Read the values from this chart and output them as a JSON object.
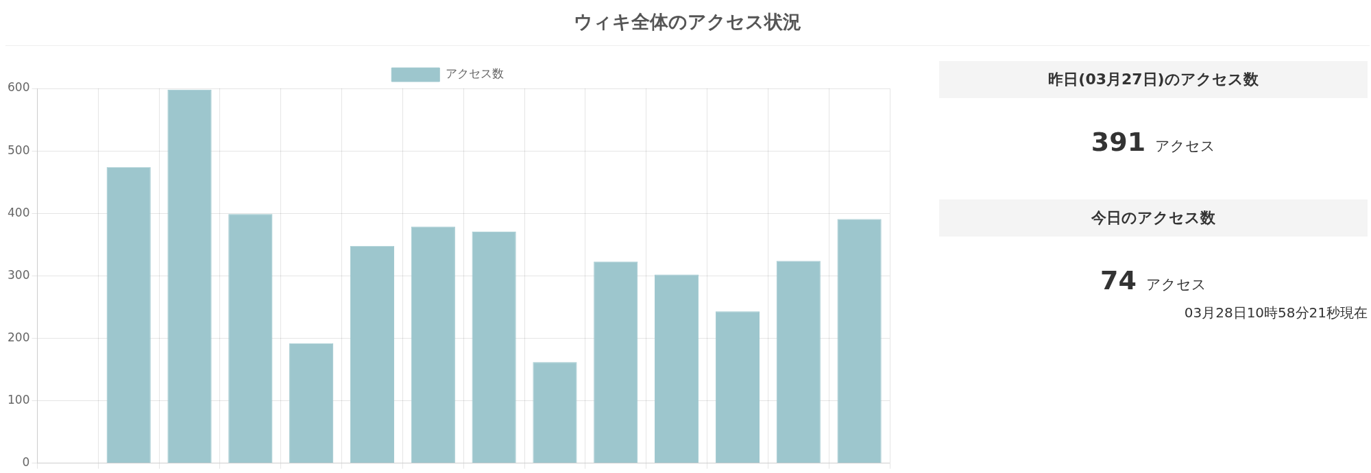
{
  "chart_data": [
    {
      "type": "bar",
      "title": "ウィキ全体のアクセス状況",
      "categories": [
        null,
        null,
        null,
        null,
        null,
        null,
        null,
        null,
        null,
        null,
        null,
        null,
        null,
        null
      ],
      "series": [
        {
          "name": "アクセス数",
          "color": "#9dc6cd",
          "values": [
            null,
            474,
            598,
            399,
            192,
            348,
            379,
            371,
            162,
            323,
            302,
            243,
            324,
            391
          ]
        }
      ],
      "ylim": [
        0,
        600
      ],
      "yticks": [
        0,
        100,
        200,
        300,
        400,
        500,
        600
      ],
      "grid": true,
      "legend": "top",
      "tick_labels": "y"
    },
    {
      "type": "other",
      "annotations": [
        "昨日(03月27日)のアクセス数",
        "391",
        "アクセス",
        "今日のアクセス数",
        "74",
        "アクセス",
        "03月28日10時58分21秒現在"
      ]
    }
  ]
}
